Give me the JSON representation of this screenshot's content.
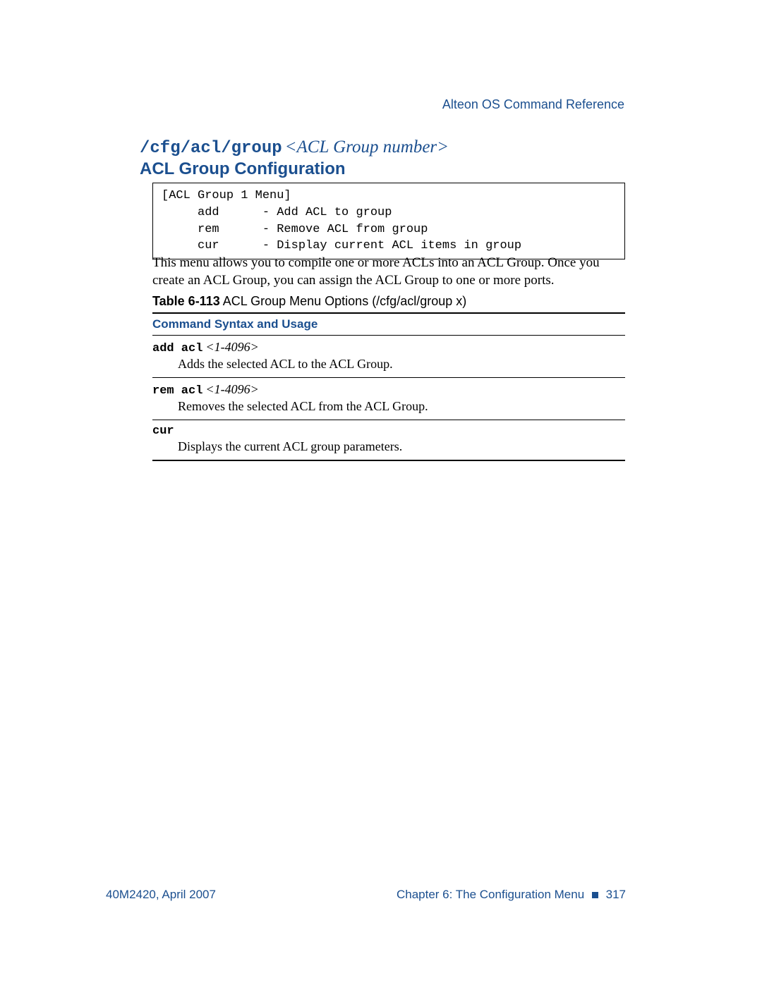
{
  "colors": {
    "brand_blue": "#1b4f8f",
    "text_black": "#000000",
    "background": "#ffffff"
  },
  "typography": {
    "body_font": "Times New Roman",
    "mono_font": "Courier New",
    "sans_font": "Myriad Pro / Segoe UI",
    "body_size_pt": 14,
    "heading_size_pt": 18,
    "mono_size_pt": 13
  },
  "header": {
    "doc_title": "Alteon OS  Command Reference"
  },
  "heading": {
    "command_path": "/cfg/acl/group",
    "command_arg": "<ACL Group number>",
    "subtitle": "ACL Group Configuration"
  },
  "menu_box": {
    "lines": "[ACL Group 1 Menu]\n     add      - Add ACL to group\n     rem      - Remove ACL from group\n     cur      - Display current ACL items in group"
  },
  "body_paragraph": "This menu allows you to compile one or more ACLs into an ACL Group. Once you create an ACL Group, you can assign the ACL Group to one or more ports.",
  "table": {
    "caption_label": "Table 6-113",
    "caption_text": "ACL Group Menu Options (/cfg/acl/group x)",
    "header": "Command Syntax and Usage",
    "rows": [
      {
        "cmd": "add acl",
        "arg": "<1-4096>",
        "desc": "Adds the selected ACL to the ACL Group."
      },
      {
        "cmd": "rem acl",
        "arg": "<1-4096>",
        "desc": "Removes the selected ACL from the ACL Group."
      },
      {
        "cmd": "cur",
        "arg": "",
        "desc": "Displays the current ACL group parameters."
      }
    ]
  },
  "footer": {
    "left": "40M2420, April 2007",
    "chapter": "Chapter 6:  The Configuration Menu",
    "page_num": "317"
  }
}
